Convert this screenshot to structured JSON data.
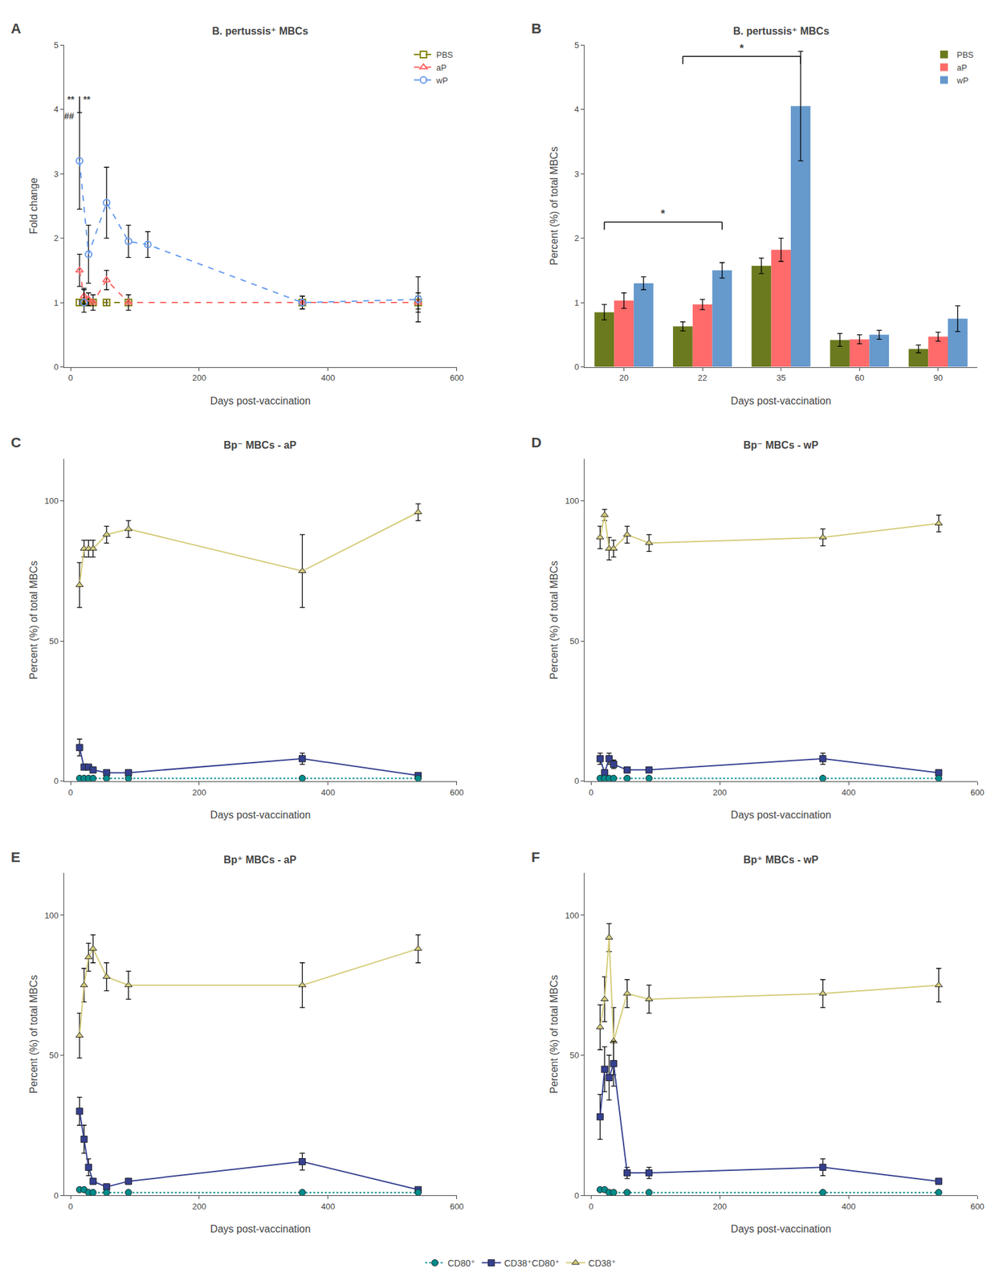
{
  "chart_data": [
    {
      "type": "line",
      "panel": "A",
      "title": "B. pertussis⁺ MBCs",
      "xlabel": "Days post-vaccination",
      "ylabel": "Fold change",
      "xlim": [
        -10,
        600
      ],
      "ylim": [
        0,
        5
      ],
      "xticks": [
        0,
        200,
        400,
        600
      ],
      "yticks": [
        0,
        1,
        2,
        3,
        4,
        5
      ],
      "grid": false,
      "legend": "upper right",
      "series": [
        {
          "name": "PBS",
          "color": "#808000",
          "marker": "square-open",
          "line_style": "dashed",
          "x": [
            14,
            21,
            28,
            35,
            56,
            90,
            360,
            540
          ],
          "values": [
            1.0,
            1.0,
            1.0,
            1.0,
            1.0,
            1.0,
            1.0,
            1.0
          ],
          "yerr": [
            0.05,
            0.05,
            0.05,
            0.05,
            0.05,
            0.05,
            0.05,
            0.1
          ]
        },
        {
          "name": "aP",
          "color": "#FF6666",
          "marker": "triangle-up-open",
          "line_style": "dashed",
          "x": [
            14,
            21,
            28,
            35,
            56,
            90,
            360,
            540
          ],
          "values": [
            1.5,
            1.1,
            1.05,
            1.0,
            1.35,
            1.0,
            1.0,
            1.0
          ],
          "yerr": [
            0.25,
            0.12,
            0.1,
            0.12,
            0.15,
            0.12,
            0.1,
            0.15
          ]
        },
        {
          "name": "wP",
          "color": "#6699EE",
          "marker": "circle-open",
          "line_style": "dashed",
          "x": [
            14,
            28,
            56,
            90,
            120,
            360,
            540
          ],
          "values": [
            3.2,
            1.75,
            2.55,
            1.95,
            1.9,
            1.0,
            1.05
          ],
          "yerr": [
            0.75,
            0.45,
            0.55,
            0.25,
            0.2,
            0.1,
            0.35
          ]
        },
        {
          "name": "wP",
          "color": "#6699EE",
          "marker": "circle-open",
          "line_style": "none",
          "x": [
            21
          ],
          "values": [
            1.0
          ],
          "yerr_minus": [
            0.15
          ],
          "yerr_plus": [
            0.2
          ]
        }
      ],
      "annotations": [
        {
          "text": "**",
          "x": 8,
          "y": 4.05
        },
        {
          "text": "##",
          "x": 8,
          "y": 3.8
        },
        {
          "text": "**",
          "x": 18,
          "y": 4.05
        }
      ],
      "lines": [
        {
          "x": [
            14,
            14
          ],
          "y": [
            3.95,
            4.2
          ]
        }
      ]
    },
    {
      "type": "bar",
      "panel": "B",
      "title": "B. pertussis⁺ MBCs",
      "xlabel": "Days post-vaccination",
      "ylabel": "Percent (%) of total MBCs",
      "categories": [
        "20",
        "22",
        "35",
        "60",
        "90"
      ],
      "ylim": [
        0,
        5
      ],
      "yticks": [
        0,
        1,
        2,
        3,
        4,
        5
      ],
      "grid": false,
      "legend": "upper right",
      "series": [
        {
          "name": "PBS",
          "color": "#6B7A1E",
          "values": [
            0.85,
            0.63,
            1.57,
            0.42,
            0.28
          ],
          "yerr": [
            0.12,
            0.07,
            0.12,
            0.1,
            0.06
          ]
        },
        {
          "name": "aP",
          "color": "#FF6B6B",
          "values": [
            1.03,
            0.97,
            1.82,
            0.43,
            0.47
          ],
          "yerr": [
            0.12,
            0.08,
            0.18,
            0.07,
            0.07
          ]
        },
        {
          "name": "wP",
          "color": "#6699CC",
          "values": [
            1.3,
            1.5,
            4.05,
            0.5,
            0.75
          ],
          "yerr": [
            0.1,
            0.12,
            0.85,
            0.07,
            0.2
          ]
        }
      ],
      "brackets": [
        {
          "from": "20",
          "to": "22",
          "y": 2.25,
          "text": "*"
        },
        {
          "from": "22",
          "to": "35",
          "y": 4.82,
          "text": "*"
        }
      ]
    },
    {
      "type": "line",
      "panel": "C",
      "title": "Bp⁻ MBCs - aP",
      "xlabel": "Days post-vaccination",
      "ylabel": "Percent (%) of total MBCs",
      "xlim": [
        -10,
        600
      ],
      "ylim": [
        0,
        115
      ],
      "xticks": [
        0,
        200,
        400,
        600
      ],
      "yticks": [
        0,
        50,
        100
      ],
      "grid": false,
      "legend": "bottom",
      "series": [
        {
          "name": "CD38⁺",
          "color": "#D4CC7A",
          "marker": "triangle-up",
          "line_style": "solid",
          "x": [
            14,
            21,
            28,
            35,
            56,
            90,
            360,
            540
          ],
          "values": [
            70,
            83,
            83,
            83,
            88,
            90,
            75,
            96
          ],
          "yerr": [
            8,
            3,
            3,
            3,
            3,
            3,
            13,
            3
          ]
        },
        {
          "name": "CD38⁺CD80⁺",
          "color": "#354090",
          "marker": "square",
          "line_style": "solid",
          "x": [
            14,
            21,
            28,
            35,
            56,
            90,
            360,
            540
          ],
          "values": [
            12,
            5,
            5,
            4,
            3,
            3,
            8,
            2
          ],
          "yerr": [
            3,
            1,
            1,
            1,
            0.5,
            0.5,
            2,
            0.5
          ]
        },
        {
          "name": "CD80⁺",
          "color": "#008B8B",
          "marker": "circle",
          "line_style": "dotted",
          "x": [
            14,
            21,
            28,
            35,
            56,
            90,
            360,
            540
          ],
          "values": [
            1,
            1,
            1,
            1,
            1,
            1,
            1,
            1
          ],
          "yerr": [
            0.3,
            0.2,
            0.2,
            0.2,
            0.2,
            0.2,
            0.2,
            0.2
          ]
        }
      ]
    },
    {
      "type": "line",
      "panel": "D",
      "title": "Bp⁻ MBCs - wP",
      "xlabel": "Days post-vaccination",
      "ylabel": "Percent (%) of total MBCs",
      "xlim": [
        -10,
        600
      ],
      "ylim": [
        0,
        115
      ],
      "xticks": [
        0,
        200,
        400,
        600
      ],
      "yticks": [
        0,
        50,
        100
      ],
      "grid": false,
      "legend": "bottom",
      "series": [
        {
          "name": "CD38⁺",
          "color": "#D4CC7A",
          "marker": "triangle-up",
          "line_style": "solid",
          "x": [
            14,
            21,
            28,
            35,
            56,
            90,
            360,
            540
          ],
          "values": [
            87,
            95,
            83,
            83,
            88,
            85,
            87,
            92
          ],
          "yerr": [
            4,
            2,
            4,
            3,
            3,
            3,
            3,
            3
          ]
        },
        {
          "name": "CD38⁺CD80⁺",
          "color": "#354090",
          "marker": "square",
          "line_style": "solid",
          "x": [
            14,
            21,
            28,
            35,
            56,
            90,
            360,
            540
          ],
          "values": [
            8,
            3,
            8,
            6,
            4,
            4,
            8,
            3
          ],
          "yerr": [
            2,
            1,
            2,
            1.5,
            1,
            1,
            2,
            0.5
          ]
        },
        {
          "name": "CD80⁺",
          "color": "#008B8B",
          "marker": "circle",
          "line_style": "dotted",
          "x": [
            14,
            21,
            28,
            35,
            56,
            90,
            360,
            540
          ],
          "values": [
            1,
            1,
            1,
            1,
            1,
            1,
            1,
            1
          ],
          "yerr": [
            0.3,
            0.2,
            0.2,
            0.2,
            0.2,
            0.2,
            0.2,
            0.2
          ]
        }
      ]
    },
    {
      "type": "line",
      "panel": "E",
      "title": "Bp⁺ MBCs - aP",
      "xlabel": "Days post-vaccination",
      "ylabel": "Percent (%) of total MBCs",
      "xlim": [
        -10,
        600
      ],
      "ylim": [
        0,
        115
      ],
      "xticks": [
        0,
        200,
        400,
        600
      ],
      "yticks": [
        0,
        50,
        100
      ],
      "grid": false,
      "legend": "bottom",
      "series": [
        {
          "name": "CD38⁺",
          "color": "#D4CC7A",
          "marker": "triangle-up",
          "line_style": "solid",
          "x": [
            14,
            21,
            28,
            35,
            56,
            90,
            360,
            540
          ],
          "values": [
            57,
            75,
            85,
            88,
            78,
            75,
            75,
            88
          ],
          "yerr": [
            8,
            6,
            5,
            5,
            5,
            5,
            8,
            5
          ]
        },
        {
          "name": "CD38⁺CD80⁺",
          "color": "#354090",
          "marker": "square",
          "line_style": "solid",
          "x": [
            14,
            21,
            28,
            35,
            56,
            90,
            360,
            540
          ],
          "values": [
            30,
            20,
            10,
            5,
            3,
            5,
            12,
            2
          ],
          "yerr": [
            5,
            5,
            3,
            1,
            1,
            1,
            3,
            0.5
          ]
        },
        {
          "name": "CD80⁺",
          "color": "#008B8B",
          "marker": "circle",
          "line_style": "dotted",
          "x": [
            14,
            21,
            28,
            35,
            56,
            90,
            360,
            540
          ],
          "values": [
            2,
            2,
            1,
            1,
            1,
            1,
            1,
            1
          ],
          "yerr": [
            0.5,
            0.3,
            0.2,
            0.2,
            0.2,
            0.2,
            0.2,
            0.2
          ]
        }
      ]
    },
    {
      "type": "line",
      "panel": "F",
      "title": "Bp⁺ MBCs - wP",
      "xlabel": "Days post-vaccination",
      "ylabel": "Percent (%) of total MBCs",
      "xlim": [
        -10,
        600
      ],
      "ylim": [
        0,
        115
      ],
      "xticks": [
        0,
        200,
        400,
        600
      ],
      "yticks": [
        0,
        50,
        100
      ],
      "grid": false,
      "legend": "bottom",
      "series": [
        {
          "name": "CD38⁺",
          "color": "#D4CC7A",
          "marker": "triangle-up",
          "line_style": "solid",
          "x": [
            14,
            21,
            28,
            35,
            56,
            90,
            360,
            540
          ],
          "values": [
            60,
            70,
            92,
            55,
            72,
            70,
            72,
            75
          ],
          "yerr": [
            8,
            8,
            5,
            12,
            5,
            5,
            5,
            6
          ]
        },
        {
          "name": "CD38⁺CD80⁺",
          "color": "#354090",
          "marker": "square",
          "line_style": "solid",
          "x": [
            14,
            21,
            28,
            35,
            56,
            90,
            360,
            540
          ],
          "values": [
            28,
            45,
            42,
            47,
            8,
            8,
            10,
            5
          ],
          "yerr": [
            8,
            8,
            8,
            8,
            2,
            2,
            3,
            1
          ]
        },
        {
          "name": "CD80⁺",
          "color": "#008B8B",
          "marker": "circle",
          "line_style": "dotted",
          "x": [
            14,
            21,
            28,
            35,
            56,
            90,
            360,
            540
          ],
          "values": [
            2,
            2,
            1,
            1,
            1,
            1,
            1,
            1
          ],
          "yerr": [
            0.5,
            0.3,
            0.2,
            0.2,
            0.2,
            0.2,
            0.2,
            0.2
          ]
        }
      ]
    }
  ]
}
